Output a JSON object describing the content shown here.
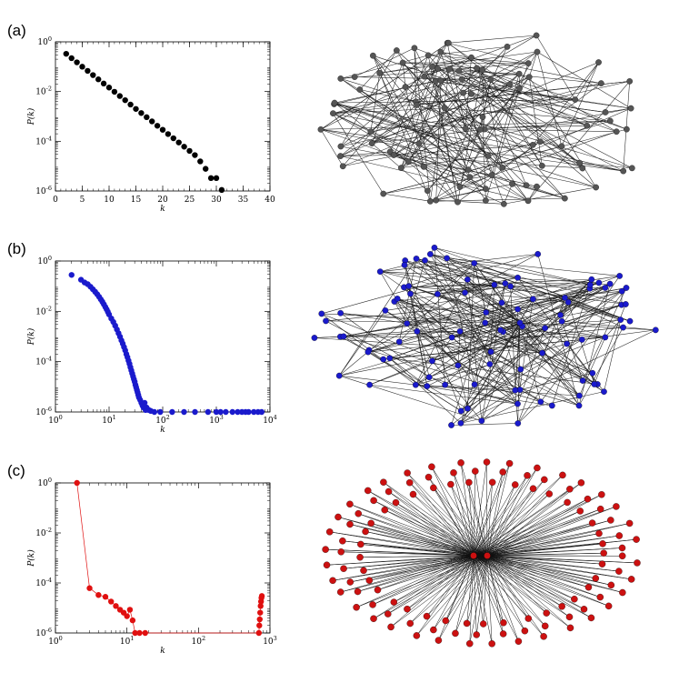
{
  "panels": [
    {
      "label": "(a)"
    },
    {
      "label": "(b)"
    },
    {
      "label": "(c)"
    }
  ],
  "chart_data": [
    {
      "type": "scatter",
      "panel": "(a)",
      "xlabel": "k",
      "ylabel": "P(k)",
      "xscale": "linear",
      "yscale": "log",
      "xlim": [
        0,
        40
      ],
      "ylim": [
        1e-06,
        1
      ],
      "x_ticks": [
        0,
        5,
        10,
        15,
        20,
        25,
        30,
        35,
        40
      ],
      "x_tick_labels": [
        "0",
        "5",
        "10",
        "15",
        "20",
        "25",
        "30",
        "35",
        "40"
      ],
      "y_ticks": [
        1e-06,
        0.0001,
        0.01,
        1
      ],
      "y_tick_labels": [
        [
          "10",
          "-6"
        ],
        [
          "10",
          "-4"
        ],
        [
          "10",
          "-2"
        ],
        [
          "10",
          "0"
        ]
      ],
      "color": "#000000",
      "connected": false,
      "series": [
        {
          "x": [
            2,
            3,
            4,
            5,
            6,
            7,
            8,
            9,
            10,
            11,
            12,
            13,
            14,
            15,
            16,
            17,
            18,
            19,
            20,
            21,
            22,
            23,
            24,
            25,
            26,
            27,
            28,
            29,
            30,
            31
          ],
          "y": [
            0.33,
            0.22,
            0.15,
            0.1,
            0.068,
            0.046,
            0.031,
            0.021,
            0.0145,
            0.0098,
            0.0066,
            0.0045,
            0.003,
            0.002,
            0.00137,
            0.00093,
            0.00063,
            0.00042,
            0.00029,
            0.000195,
            0.000132,
            8.95e-05,
            6.05e-05,
            4.1e-05,
            2.78e-05,
            1.55e-05,
            7.8e-06,
            3.3e-06,
            3.3e-06,
            1.1e-06
          ]
        }
      ]
    },
    {
      "type": "scatter",
      "panel": "(b)",
      "xlabel": "k",
      "ylabel": "P(k)",
      "xscale": "log",
      "yscale": "log",
      "xlim": [
        1,
        10000
      ],
      "ylim": [
        1e-06,
        1
      ],
      "x_ticks": [
        1,
        10,
        100,
        1000,
        10000
      ],
      "x_tick_labels": [
        [
          "10",
          "0"
        ],
        [
          "10",
          "1"
        ],
        [
          "10",
          "2"
        ],
        [
          "10",
          "3"
        ],
        [
          "10",
          "4"
        ]
      ],
      "y_ticks": [
        1e-06,
        0.0001,
        0.01,
        1
      ],
      "y_tick_labels": [
        [
          "10",
          "-6"
        ],
        [
          "10",
          "-4"
        ],
        [
          "10",
          "-2"
        ],
        [
          "10",
          "0"
        ]
      ],
      "color": "#1a1acc",
      "connected": false,
      "series": [
        {
          "x": [
            2,
            3,
            3.5,
            4,
            4.5,
            5,
            5.5,
            6,
            6.5,
            7,
            7.5,
            8,
            8.5,
            9,
            9.5,
            10,
            11,
            12,
            13,
            14,
            15,
            16,
            17,
            18,
            19,
            20,
            21,
            22,
            23,
            24,
            25,
            26,
            27,
            28,
            29,
            30,
            31,
            32,
            33,
            34,
            35,
            36,
            38,
            40,
            42,
            44,
            46,
            48,
            50,
            55,
            60,
            70,
            90,
            150,
            250,
            400,
            700,
            1000,
            1200,
            1500,
            2000,
            2500,
            3000,
            3500,
            4000,
            5000,
            6000,
            7000
          ],
          "y": [
            0.28,
            0.18,
            0.14,
            0.12,
            0.095,
            0.075,
            0.06,
            0.048,
            0.038,
            0.03,
            0.024,
            0.019,
            0.015,
            0.012,
            0.0095,
            0.0075,
            0.0052,
            0.0038,
            0.0027,
            0.0019,
            0.00135,
            0.00098,
            0.0007,
            0.00052,
            0.00038,
            0.00028,
            0.0002,
            0.00015,
            0.00011,
            8.2e-05,
            6e-05,
            4.5e-05,
            3.4e-05,
            2.6e-05,
            2e-05,
            1.6e-05,
            1.2e-05,
            9.5e-06,
            7.5e-06,
            6e-06,
            4.8e-06,
            3.8e-06,
            3e-06,
            2.3e-06,
            1.8e-06,
            1.5e-06,
            2.3e-06,
            1.2e-06,
            1.5e-06,
            1.2e-06,
            1.1e-06,
            1e-06,
            1e-06,
            1e-06,
            1e-06,
            1e-06,
            1e-06,
            1e-06,
            1e-06,
            1e-06,
            1e-06,
            1e-06,
            1e-06,
            1e-06,
            1e-06,
            1e-06,
            1e-06,
            1e-06
          ]
        }
      ]
    },
    {
      "type": "line",
      "panel": "(c)",
      "xlabel": "k",
      "ylabel": "P(k)",
      "xscale": "log",
      "yscale": "log",
      "xlim": [
        1,
        1000
      ],
      "ylim": [
        1e-06,
        1
      ],
      "x_ticks": [
        1,
        10,
        100,
        1000
      ],
      "x_tick_labels": [
        [
          "10",
          "0"
        ],
        [
          "10",
          "1"
        ],
        [
          "10",
          "2"
        ],
        [
          "10",
          "3"
        ]
      ],
      "y_ticks": [
        1e-06,
        0.0001,
        0.01,
        1
      ],
      "y_tick_labels": [
        [
          "10",
          "-6"
        ],
        [
          "10",
          "-4"
        ],
        [
          "10",
          "-2"
        ],
        [
          "10",
          "0"
        ]
      ],
      "color": "#e01010",
      "connected": true,
      "series": [
        {
          "x": [
            2,
            3,
            4,
            5,
            6,
            7,
            8,
            9,
            10,
            11,
            12,
            13,
            15,
            18,
            700,
            710,
            720,
            730,
            740,
            750,
            760,
            770
          ],
          "y": [
            1.0,
            6.2e-05,
            3.3e-05,
            2.8e-05,
            1.8e-05,
            1.2e-05,
            8.5e-06,
            6.5e-06,
            4.7e-06,
            8.5e-06,
            3.2e-06,
            1e-06,
            1e-06,
            1e-06,
            1e-06,
            2e-06,
            3.5e-06,
            6.5e-06,
            1.2e-05,
            1.8e-05,
            2.5e-05,
            3e-05
          ]
        }
      ]
    }
  ],
  "networks": [
    {
      "panel": "(a)",
      "node_color": "#555555",
      "edge_color": "#222222"
    },
    {
      "panel": "(b)",
      "node_color": "#1a1acc",
      "edge_color": "#222222"
    },
    {
      "panel": "(c)",
      "node_color": "#cc1111",
      "edge_color": "#111111"
    }
  ]
}
